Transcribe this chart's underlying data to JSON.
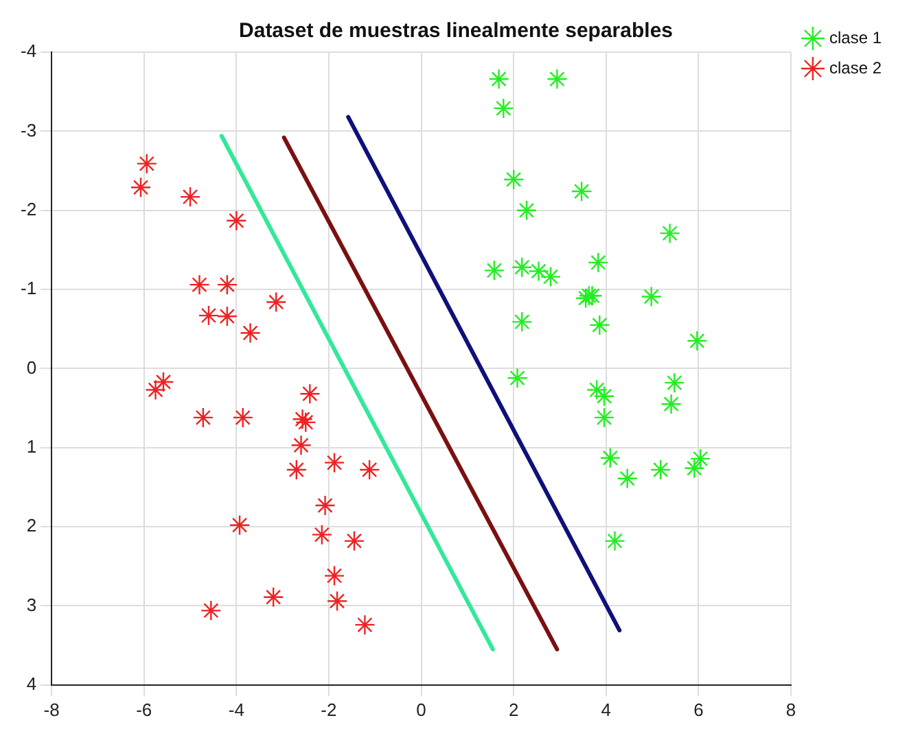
{
  "chart_data": {
    "type": "scatter",
    "title": "Dataset de muestras linealmente separables",
    "xlim": [
      -8,
      8
    ],
    "ylim": [
      4,
      -4
    ],
    "xticks": [
      -8,
      -6,
      -4,
      -2,
      0,
      2,
      4,
      6,
      8
    ],
    "yticks": [
      4,
      3,
      2,
      1,
      0,
      -1,
      -2,
      -3,
      -4
    ],
    "grid": true,
    "legend": "top right",
    "series": [
      {
        "name": "clase 1",
        "type": "scatter",
        "marker": "cross",
        "color": "#22ee22",
        "x": [
          1.68,
          2.94,
          1.78,
          2.0,
          3.47,
          2.28,
          5.38,
          3.83,
          1.58,
          2.18,
          2.54,
          2.8,
          3.63,
          3.7,
          3.56,
          4.98,
          2.18,
          3.86,
          5.97,
          2.08,
          3.8,
          3.96,
          3.96,
          5.48,
          5.41,
          4.09,
          4.46,
          5.18,
          5.91,
          6.04,
          4.19
        ],
        "values": [
          -3.66,
          -3.66,
          -3.29,
          -2.39,
          -2.24,
          -2.0,
          -1.71,
          -1.34,
          -1.24,
          -1.28,
          -1.23,
          -1.16,
          -0.92,
          -0.92,
          -0.89,
          -0.91,
          -0.59,
          -0.55,
          -0.35,
          0.12,
          0.27,
          0.35,
          0.62,
          0.18,
          0.45,
          1.13,
          1.39,
          1.28,
          1.26,
          1.14,
          2.18
        ]
      },
      {
        "name": "clase 2",
        "type": "scatter",
        "marker": "cross",
        "color": "#ee2222",
        "x": [
          -5.94,
          -6.07,
          -5.0,
          -4.0,
          -4.8,
          -4.2,
          -4.6,
          -4.2,
          -3.7,
          -3.14,
          -5.75,
          -5.58,
          -4.72,
          -3.86,
          -2.41,
          -2.57,
          -2.5,
          -2.6,
          -2.7,
          -1.88,
          -1.12,
          -2.08,
          -3.93,
          -2.15,
          -1.45,
          -1.88,
          -1.82,
          -3.2,
          -4.55,
          -1.22
        ],
        "values": [
          -2.59,
          -2.29,
          -2.17,
          -1.87,
          -1.06,
          -1.06,
          -0.67,
          -0.66,
          -0.45,
          -0.84,
          0.27,
          0.17,
          0.62,
          0.62,
          0.32,
          0.64,
          0.68,
          0.97,
          1.28,
          1.19,
          1.28,
          1.73,
          1.98,
          2.1,
          2.18,
          2.62,
          2.94,
          2.89,
          3.06,
          3.24
        ]
      },
      {
        "type": "line",
        "color": "#33e89a",
        "x": [
          -4.32,
          1.55
        ],
        "values": [
          -2.94,
          3.55
        ]
      },
      {
        "type": "line",
        "color": "#7a1010",
        "x": [
          -2.97,
          2.94
        ],
        "values": [
          -2.92,
          3.55
        ]
      },
      {
        "type": "line",
        "color": "#10107a",
        "x": [
          -1.58,
          4.29
        ],
        "values": [
          -3.18,
          3.31
        ]
      }
    ]
  }
}
